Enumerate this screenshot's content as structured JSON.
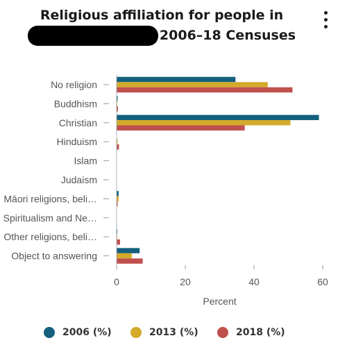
{
  "header": {
    "title_line1": "Religious affiliation for people in",
    "title_line2_suffix": "2006–18 Censuses"
  },
  "icons": {
    "menu": "more-vertical-icon"
  },
  "chart_data": {
    "type": "bar",
    "orientation": "horizontal",
    "title": "Religious affiliation for people in [redacted] 2006–18 Censuses",
    "categories": [
      "No religion",
      "Buddhism",
      "Christian",
      "Hinduism",
      "Islam",
      "Judaism",
      "Māori religions, beli…",
      "Spiritualism and Ne…",
      "Other religions, beli…",
      "Object to answering"
    ],
    "series": [
      {
        "name": "2006 (%)",
        "color": "#145f7d",
        "values": [
          34.6,
          0.3,
          58.9,
          0.1,
          0.1,
          0.0,
          0.6,
          0.1,
          0.2,
          6.7
        ]
      },
      {
        "name": "2013 (%)",
        "color": "#d3aa2a",
        "values": [
          44.0,
          0.2,
          50.6,
          0.3,
          0.1,
          0.0,
          0.6,
          0.1,
          0.2,
          4.4
        ]
      },
      {
        "name": "2018 (%)",
        "color": "#c0504d",
        "values": [
          51.2,
          0.4,
          37.3,
          0.7,
          0.1,
          0.0,
          0.3,
          0.1,
          1.0,
          7.6
        ]
      }
    ],
    "xlabel": "Percent",
    "ylabel": "",
    "xlim": [
      0,
      60
    ],
    "xticks": [
      0,
      20,
      40,
      60
    ],
    "grid": false,
    "legend": "bottom"
  }
}
